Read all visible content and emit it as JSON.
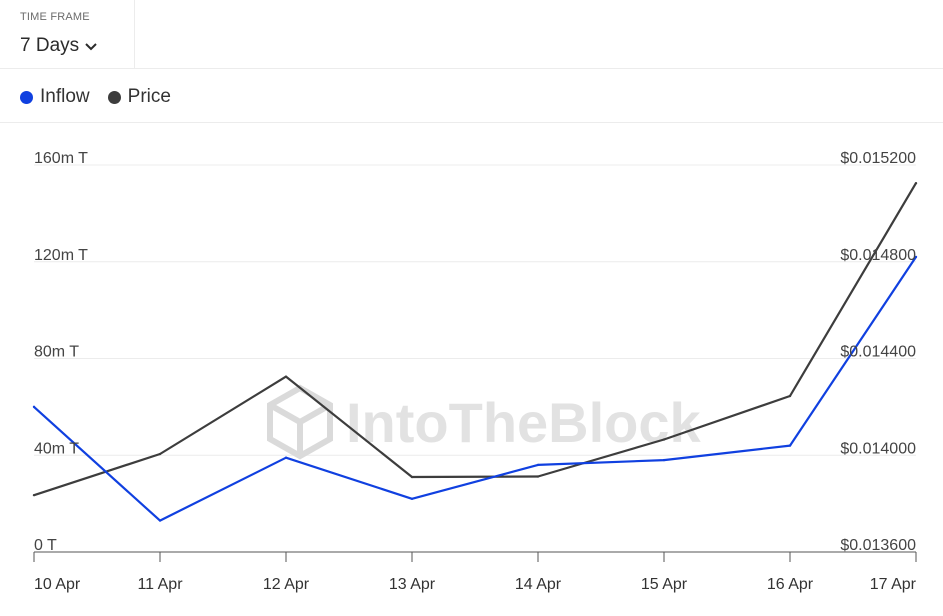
{
  "timeframe": {
    "label": "TIME FRAME",
    "value": "7 Days",
    "icon": "chevron-down-icon"
  },
  "legend": [
    {
      "name": "Inflow",
      "color": "#1040e0"
    },
    {
      "name": "Price",
      "color": "#3d3d3d"
    }
  ],
  "watermark": "IntoTheBlock",
  "chart_data": {
    "type": "line",
    "x": [
      "10 Apr",
      "11 Apr",
      "12 Apr",
      "13 Apr",
      "14 Apr",
      "15 Apr",
      "16 Apr",
      "17 Apr"
    ],
    "series": [
      {
        "name": "Inflow",
        "axis": "left",
        "color": "#1040e0",
        "values": [
          60,
          13,
          39,
          22,
          36,
          38,
          44,
          122
        ]
      },
      {
        "name": "Price",
        "axis": "right",
        "color": "#3d3d3d",
        "values": [
          0.013835,
          0.014005,
          0.014325,
          0.01391,
          0.013912,
          0.014065,
          0.014245,
          0.015125
        ]
      }
    ],
    "y_left": {
      "min": 0,
      "max": 160,
      "ticks": [
        0,
        40,
        80,
        120,
        160
      ],
      "tick_labels": [
        "0 T",
        "40m T",
        "80m T",
        "120m T",
        "160m T"
      ]
    },
    "y_right": {
      "min": 0.0136,
      "max": 0.0152,
      "ticks": [
        0.0136,
        0.014,
        0.0144,
        0.0148,
        0.0152
      ],
      "tick_labels": [
        "$0.013600",
        "$0.014000",
        "$0.014400",
        "$0.014800",
        "$0.015200"
      ]
    },
    "grid": true
  }
}
